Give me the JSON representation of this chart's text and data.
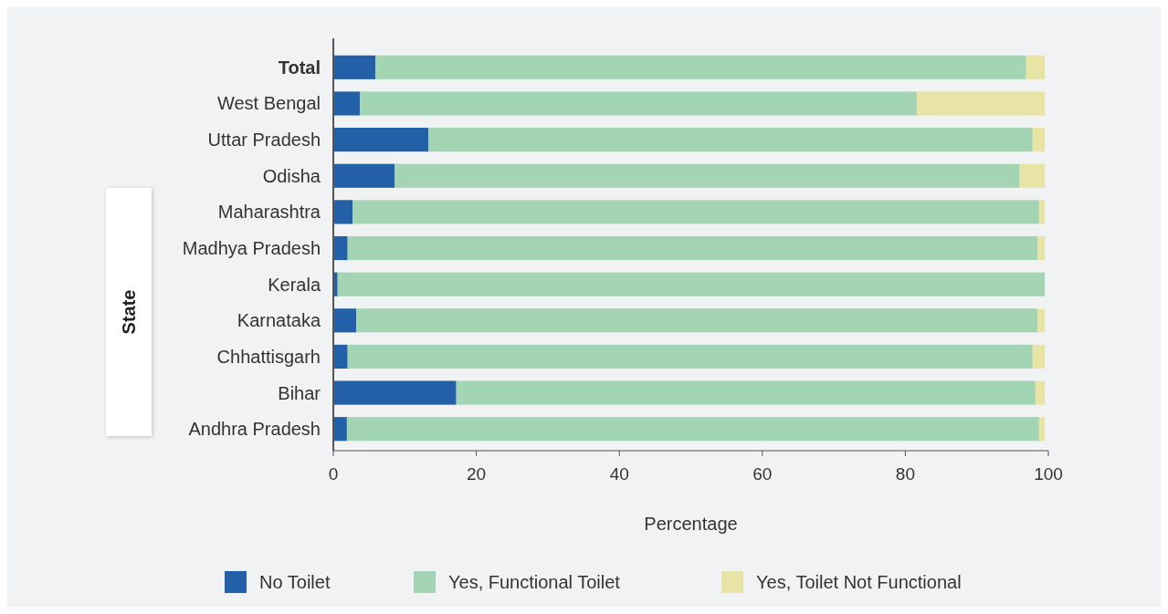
{
  "chart_data": {
    "type": "bar",
    "orientation": "horizontal",
    "stacked": true,
    "xlabel": "Percentage",
    "ylabel": "State",
    "categories": [
      "Total",
      "West Bengal",
      "Uttar Pradesh",
      "Odisha",
      "Maharashtra",
      "Madhya Pradesh",
      "Kerala",
      "Karnataka",
      "Chhattisgarh",
      "Bihar",
      "Andhra Pradesh"
    ],
    "series": [
      {
        "name": "No Toilet",
        "color": "#2360a8",
        "values": [
          5.9,
          3.7,
          13.3,
          8.6,
          2.7,
          2.0,
          0.6,
          3.2,
          2.0,
          17.2,
          1.9
        ]
      },
      {
        "name": "Yes, Functional Toilet",
        "color": "#a3d5b5",
        "values": [
          91.0,
          77.9,
          84.5,
          87.4,
          96.0,
          96.5,
          98.9,
          95.3,
          95.8,
          81.0,
          96.8
        ]
      },
      {
        "name": "Yes, Toilet Not Functional",
        "color": "#e8e4a6",
        "values": [
          2.6,
          17.9,
          1.7,
          3.5,
          0.8,
          1.0,
          0,
          1.0,
          1.7,
          1.3,
          0.8
        ]
      }
    ],
    "xlim": [
      0,
      100
    ],
    "xticks": [
      0,
      20,
      40,
      60,
      80,
      100
    ],
    "legend": "bottom",
    "grid": false
  }
}
